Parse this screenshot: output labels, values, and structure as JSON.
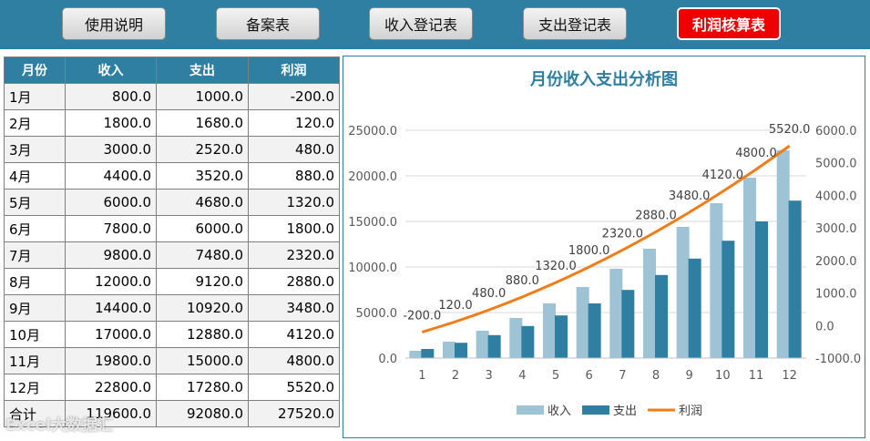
{
  "nav": [
    "使用说明",
    "备案表",
    "收入登记表",
    "支出登记表",
    "利润核算表"
  ],
  "active_nav": 4,
  "table": {
    "headers": [
      "月份",
      "收入",
      "支出",
      "利润"
    ],
    "rows": [
      [
        "1月",
        "800.0",
        "1000.0",
        "-200.0"
      ],
      [
        "2月",
        "1800.0",
        "1680.0",
        "120.0"
      ],
      [
        "3月",
        "3000.0",
        "2520.0",
        "480.0"
      ],
      [
        "4月",
        "4400.0",
        "3520.0",
        "880.0"
      ],
      [
        "5月",
        "6000.0",
        "4680.0",
        "1320.0"
      ],
      [
        "6月",
        "7800.0",
        "6000.0",
        "1800.0"
      ],
      [
        "7月",
        "9800.0",
        "7480.0",
        "2320.0"
      ],
      [
        "8月",
        "12000.0",
        "9120.0",
        "2880.0"
      ],
      [
        "9月",
        "14400.0",
        "10920.0",
        "3480.0"
      ],
      [
        "10月",
        "17000.0",
        "12880.0",
        "4120.0"
      ],
      [
        "11月",
        "19800.0",
        "15000.0",
        "4800.0"
      ],
      [
        "12月",
        "22800.0",
        "17280.0",
        "5520.0"
      ],
      [
        "合计",
        "119600.0",
        "92080.0",
        "27520.0"
      ]
    ]
  },
  "watermark": "Excel大数据汇",
  "chart_data": {
    "type": "bar",
    "title": "月份收入支出分析图",
    "categories": [
      "1",
      "2",
      "3",
      "4",
      "5",
      "6",
      "7",
      "8",
      "9",
      "10",
      "11",
      "12"
    ],
    "series": [
      {
        "name": "收入",
        "type": "bar",
        "axis": "left",
        "color": "#9dc3d4",
        "values": [
          800,
          1800,
          3000,
          4400,
          6000,
          7800,
          9800,
          12000,
          14400,
          17000,
          19800,
          22800
        ]
      },
      {
        "name": "支出",
        "type": "bar",
        "axis": "left",
        "color": "#2e7fa1",
        "values": [
          1000,
          1680,
          2520,
          3520,
          4680,
          6000,
          7480,
          9120,
          10920,
          12880,
          15000,
          17280
        ]
      },
      {
        "name": "利润",
        "type": "line",
        "axis": "right",
        "color": "#f07d19",
        "values": [
          -200,
          120,
          480,
          880,
          1320,
          1800,
          2320,
          2880,
          3480,
          4120,
          4800,
          5520
        ]
      }
    ],
    "ylim_left": [
      0,
      25000
    ],
    "yticks_left": [
      "0.0",
      "5000.0",
      "10000.0",
      "15000.0",
      "20000.0",
      "25000.0"
    ],
    "ylim_right": [
      -1000,
      6000
    ],
    "yticks_right": [
      "-1000.0",
      "0.0",
      "1000.0",
      "2000.0",
      "3000.0",
      "4000.0",
      "5000.0",
      "6000.0"
    ],
    "line_labels": [
      "-200.0",
      "120.0",
      "480.0",
      "880.0",
      "1320.0",
      "1800.0",
      "2320.0",
      "2880.0",
      "3480.0",
      "4120.0",
      "4800.0",
      "5520.0"
    ],
    "legend_position": "bottom",
    "grid": true
  }
}
